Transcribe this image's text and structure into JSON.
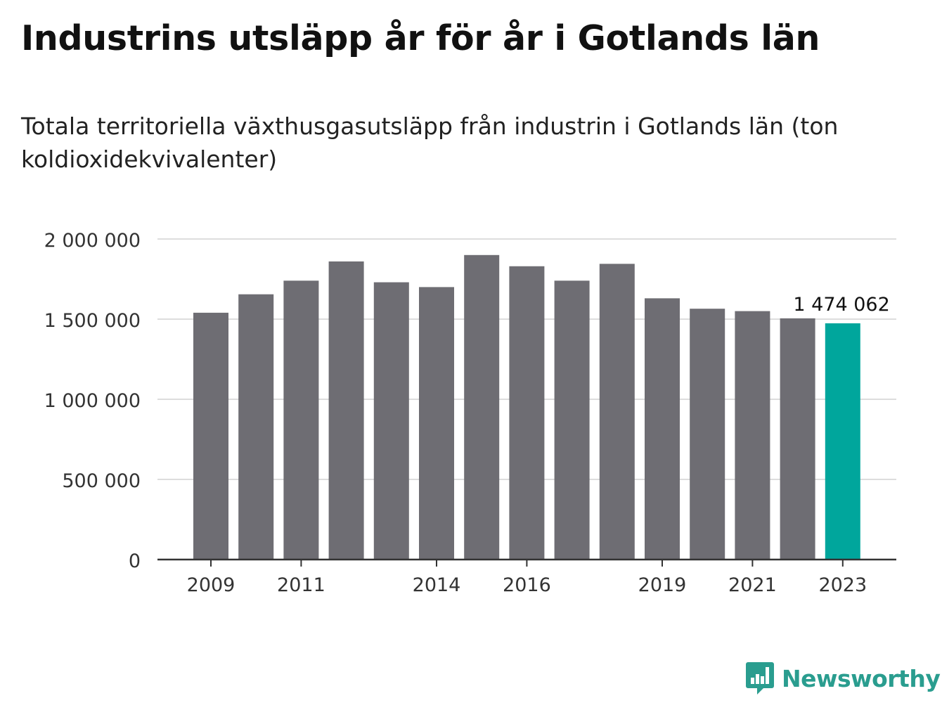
{
  "header": {
    "title": "Industrins utsläpp år för år i Gotlands län",
    "subtitle": "Totala territoriella växthusgasutsläpp från industrin i Gotlands län (ton koldioxidekvivalenter)"
  },
  "branding": {
    "name": "Newsworthy",
    "icon": "bar-chart-speech-bubble-icon",
    "color": "#2a9d8f"
  },
  "chart_data": {
    "type": "bar",
    "categories": [
      "2009",
      "2010",
      "2011",
      "2012",
      "2013",
      "2014",
      "2015",
      "2016",
      "2017",
      "2018",
      "2019",
      "2020",
      "2021",
      "2022",
      "2023"
    ],
    "values": [
      1540000,
      1655000,
      1740000,
      1860000,
      1730000,
      1700000,
      1900000,
      1830000,
      1740000,
      1845000,
      1630000,
      1565000,
      1550000,
      1505000,
      1474062
    ],
    "x_tick_labels": [
      "2009",
      "2011",
      "2014",
      "2016",
      "2019",
      "2021",
      "2023"
    ],
    "y_ticks": [
      0,
      500000,
      1000000,
      1500000,
      2000000
    ],
    "y_tick_labels": [
      "0",
      "500 000",
      "1 000 000",
      "1 500 000",
      "2 000 000"
    ],
    "ylim": [
      0,
      2000000
    ],
    "highlight": {
      "category": "2023",
      "label": "1 474 062"
    },
    "colors": {
      "bar": "#6e6d73",
      "highlight": "#00a69c",
      "grid": "#dddddd",
      "axis": "#333333"
    },
    "grid": true
  }
}
